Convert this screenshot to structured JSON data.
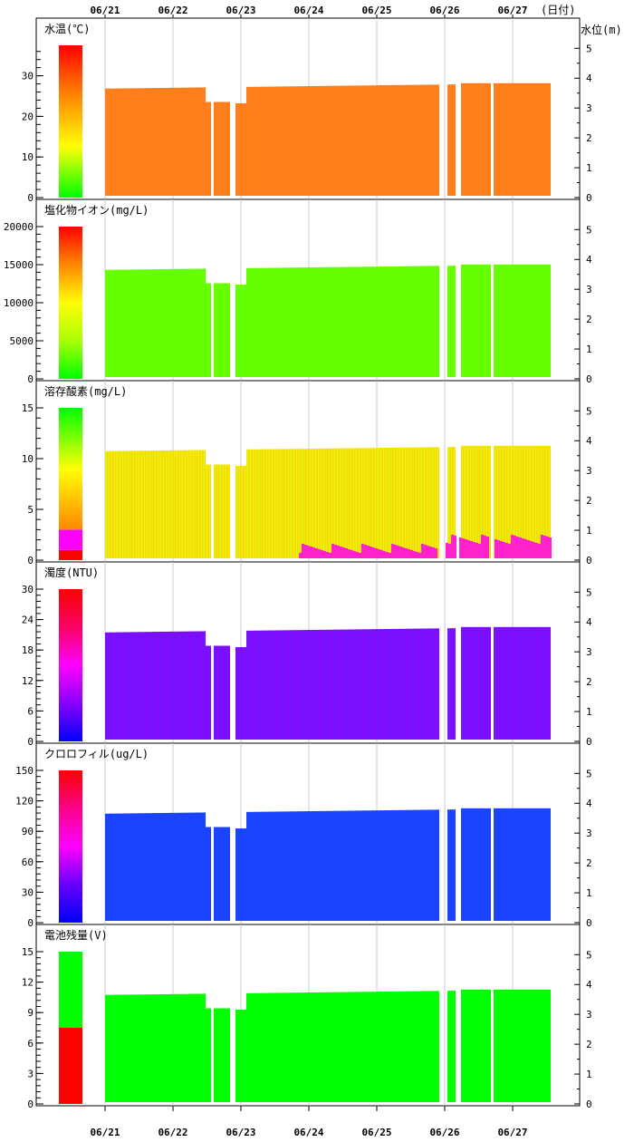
{
  "date_axis_label": "(日付)",
  "water_level_label": "水位(m)",
  "dates": [
    "06/21",
    "06/22",
    "06/23",
    "06/24",
    "06/25",
    "06/26",
    "06/27"
  ],
  "water_level_ticks": [
    0,
    1,
    2,
    3,
    4,
    5
  ],
  "chart_data": [
    {
      "type": "heatmap",
      "title": "水温(℃)",
      "yticks": [
        0,
        10,
        20,
        30
      ],
      "ylim": [
        0,
        37.5
      ],
      "colorbar": [
        {
          "from": 0,
          "to": 37.5,
          "colors": [
            "#00ff00",
            "#ffff00",
            "#ff8800",
            "#ff0000"
          ]
        }
      ],
      "fill_color": "#ff7f1c",
      "water_level_ylim": [
        0,
        5.1
      ]
    },
    {
      "type": "heatmap",
      "title": "塩化物イオン(mg/L)",
      "yticks": [
        0,
        5000,
        10000,
        15000,
        20000
      ],
      "ylim": [
        0,
        20000
      ],
      "colorbar": [
        {
          "from": 0,
          "to": 20000,
          "colors": [
            "#00ff00",
            "#aaff00",
            "#ffff00",
            "#ff8800",
            "#ff0000"
          ]
        }
      ],
      "fill_color": "#66ff00",
      "water_level_ylim": [
        0,
        5.1
      ]
    },
    {
      "type": "heatmap",
      "title": "溶存酸素(mg/L)",
      "yticks": [
        0,
        5,
        10,
        15
      ],
      "ylim": [
        0,
        15
      ],
      "colorbar": [
        {
          "from": 0,
          "to": 1,
          "colors": [
            "#ff0000",
            "#ff0000"
          ]
        },
        {
          "from": 1,
          "to": 3,
          "colors": [
            "#ff00ff",
            "#ff00ff"
          ]
        },
        {
          "from": 3,
          "to": 15,
          "colors": [
            "#ff8800",
            "#ffff00",
            "#00ff00"
          ]
        }
      ],
      "fill_gradient": [
        "#c6ec27",
        "#ffee00",
        "#ffcc00"
      ],
      "bottom_color": "#ff22cc",
      "water_level_ylim": [
        0,
        5.1
      ]
    },
    {
      "type": "heatmap",
      "title": "濁度(NTU)",
      "yticks": [
        0,
        6,
        12,
        18,
        24,
        30
      ],
      "ylim": [
        0,
        30
      ],
      "colorbar": [
        {
          "from": 0,
          "to": 30,
          "colors": [
            "#0000ff",
            "#8800ff",
            "#ff00ff",
            "#ff0066",
            "#ff0000"
          ]
        }
      ],
      "fill_gradient": [
        "#5a1eff",
        "#7a10ff",
        "#9a00ff"
      ],
      "water_level_ylim": [
        0,
        5.1
      ]
    },
    {
      "type": "heatmap",
      "title": "クロロフィル(ug/L)",
      "yticks": [
        0,
        30,
        60,
        90,
        120,
        150
      ],
      "ylim": [
        0,
        150
      ],
      "colorbar": [
        {
          "from": 0,
          "to": 150,
          "colors": [
            "#0000ff",
            "#6600ff",
            "#ff00ff",
            "#ff0088",
            "#ff0000"
          ]
        }
      ],
      "fill_color": "#1a44ff",
      "water_level_ylim": [
        0,
        5.1
      ]
    },
    {
      "type": "heatmap",
      "title": "電池残量(V)",
      "yticks": [
        0,
        3,
        6,
        9,
        12,
        15
      ],
      "ylim": [
        0,
        15
      ],
      "colorbar": [
        {
          "from": 0,
          "to": 7.5,
          "colors": [
            "#ff0000",
            "#ff0000"
          ]
        },
        {
          "from": 7.5,
          "to": 15,
          "colors": [
            "#00ff00",
            "#00ff00"
          ]
        }
      ],
      "fill_color": "#00ff00",
      "water_level_ylim": [
        0,
        5.1
      ]
    }
  ]
}
